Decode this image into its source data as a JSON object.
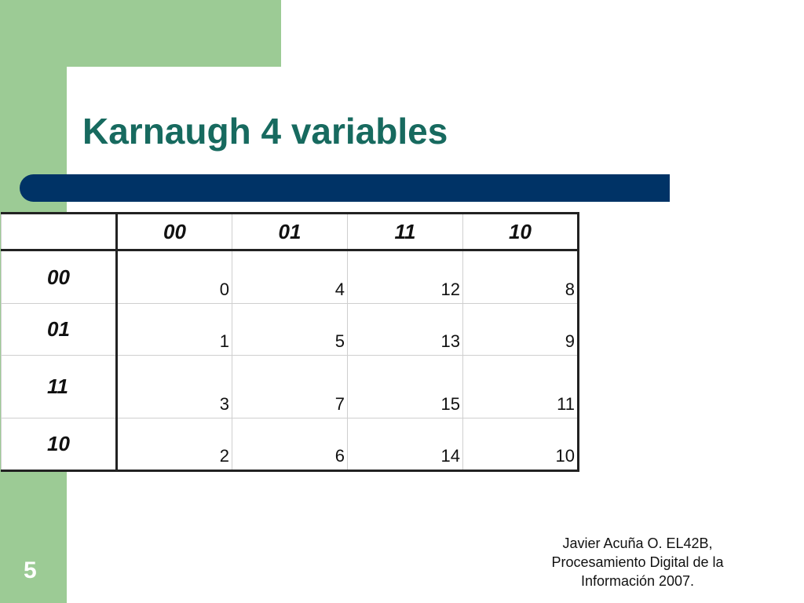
{
  "slide": {
    "title": "Karnaugh 4 variables",
    "page_number": "5",
    "footer": {
      "line1": "Javier Acuña O. EL42B,",
      "line2": "Procesamiento Digital de la",
      "line3": "Información 2007."
    }
  },
  "kmap": {
    "column_headers": [
      "00",
      "01",
      "11",
      "10"
    ],
    "rows": [
      {
        "label": "00",
        "cells": [
          "0",
          "4",
          "12",
          "8"
        ]
      },
      {
        "label": "01",
        "cells": [
          "1",
          "5",
          "13",
          "9"
        ]
      },
      {
        "label": "11",
        "cells": [
          "3",
          "7",
          "15",
          "11"
        ]
      },
      {
        "label": "10",
        "cells": [
          "2",
          "6",
          "14",
          "10"
        ]
      }
    ]
  },
  "colors": {
    "accent_green": "#9ccb95",
    "title_color": "#176a5f",
    "bar_navy": "#003366"
  }
}
